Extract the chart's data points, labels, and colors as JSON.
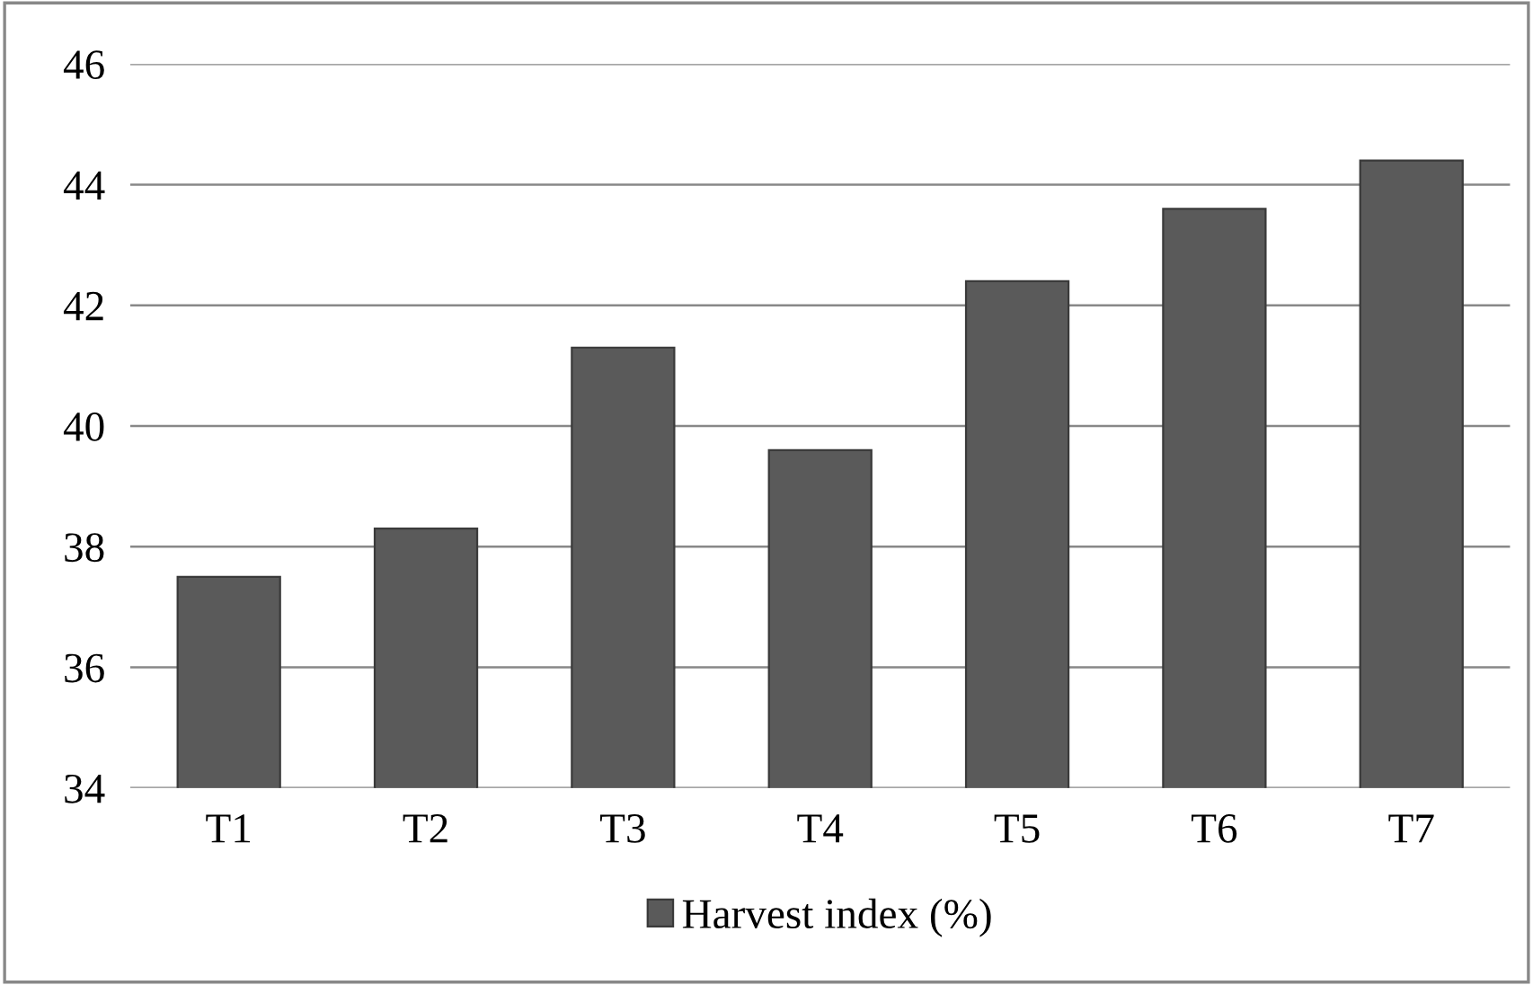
{
  "chart_data": {
    "type": "bar",
    "categories": [
      "T1",
      "T2",
      "T3",
      "T4",
      "T5",
      "T6",
      "T7"
    ],
    "series": [
      {
        "name": "Harvest index (%)",
        "color": "#5a5a5a",
        "values": [
          37.5,
          38.3,
          41.3,
          39.6,
          42.4,
          43.6,
          44.4
        ]
      }
    ],
    "ylim": [
      34,
      46
    ],
    "yticks": [
      34,
      36,
      38,
      40,
      42,
      44,
      46
    ],
    "grid": "y",
    "legend": "bottom"
  }
}
